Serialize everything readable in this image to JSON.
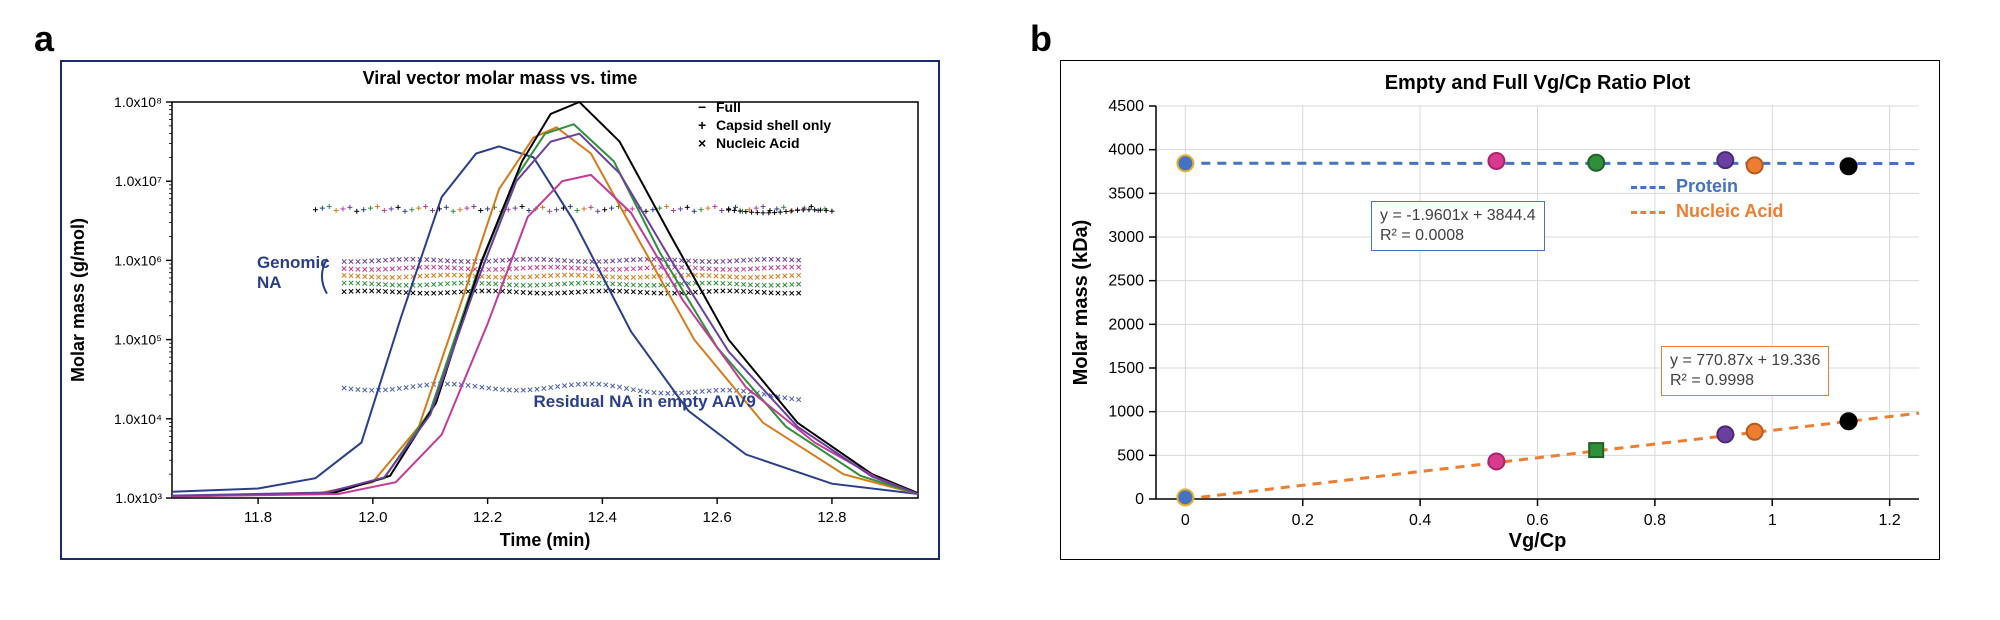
{
  "labels": {
    "a": "a",
    "b": "b"
  },
  "panelA": {
    "title": "Viral vector molar mass vs. time",
    "xlabel": "Time (min)",
    "ylabel": "Molar mass (g/mol)",
    "xlim": [
      11.65,
      12.95
    ],
    "xticks": [
      11.8,
      12.0,
      12.2,
      12.4,
      12.6,
      12.8
    ],
    "ylim_log10": [
      3,
      8
    ],
    "ytick_labels": [
      "1.0x10³",
      "1.0x10⁴",
      "1.0x10⁵",
      "1.0x10⁶",
      "1.0x10⁷",
      "1.0x10⁸"
    ],
    "legend": [
      {
        "marker": "−",
        "label": "Full"
      },
      {
        "marker": "+",
        "label": "Capsid shell only"
      },
      {
        "marker": "×",
        "label": "Nucleic Acid"
      }
    ],
    "annotations": {
      "genomic": "Genomic\nNA",
      "residual": "Residual NA in empty AAV9"
    },
    "colors": {
      "blue_empty": "#2a3e8c",
      "green": "#2f8f3a",
      "orange": "#d87a1a",
      "black": "#000000",
      "magenta": "#c23b98",
      "purple": "#6a3fa0",
      "capsid_band": "#5a5a5a",
      "na_band_low": "#4a5fb0"
    },
    "curves": [
      {
        "color": "#2a3e8c",
        "width": 2,
        "points": [
          [
            11.65,
            3.08
          ],
          [
            11.8,
            3.12
          ],
          [
            11.9,
            3.25
          ],
          [
            11.98,
            3.7
          ],
          [
            12.05,
            5.3
          ],
          [
            12.12,
            6.8
          ],
          [
            12.18,
            7.35
          ],
          [
            12.22,
            7.44
          ],
          [
            12.28,
            7.3
          ],
          [
            12.35,
            6.5
          ],
          [
            12.45,
            5.1
          ],
          [
            12.55,
            4.1
          ],
          [
            12.65,
            3.55
          ],
          [
            12.8,
            3.18
          ],
          [
            12.95,
            3.05
          ]
        ]
      },
      {
        "color": "#d87a1a",
        "width": 2,
        "points": [
          [
            11.65,
            3.02
          ],
          [
            11.9,
            3.05
          ],
          [
            12.0,
            3.2
          ],
          [
            12.08,
            3.9
          ],
          [
            12.16,
            5.6
          ],
          [
            12.22,
            6.9
          ],
          [
            12.28,
            7.55
          ],
          [
            12.32,
            7.68
          ],
          [
            12.38,
            7.35
          ],
          [
            12.46,
            6.3
          ],
          [
            12.56,
            5.0
          ],
          [
            12.68,
            3.95
          ],
          [
            12.82,
            3.3
          ],
          [
            12.95,
            3.05
          ]
        ]
      },
      {
        "color": "#2f8f3a",
        "width": 2,
        "points": [
          [
            11.65,
            3.02
          ],
          [
            11.92,
            3.06
          ],
          [
            12.02,
            3.25
          ],
          [
            12.1,
            4.1
          ],
          [
            12.18,
            5.8
          ],
          [
            12.25,
            7.05
          ],
          [
            12.3,
            7.6
          ],
          [
            12.35,
            7.72
          ],
          [
            12.42,
            7.25
          ],
          [
            12.5,
            6.1
          ],
          [
            12.6,
            4.9
          ],
          [
            12.72,
            3.9
          ],
          [
            12.85,
            3.28
          ],
          [
            12.95,
            3.05
          ]
        ]
      },
      {
        "color": "#000000",
        "width": 2,
        "points": [
          [
            11.65,
            3.02
          ],
          [
            11.93,
            3.06
          ],
          [
            12.03,
            3.28
          ],
          [
            12.11,
            4.2
          ],
          [
            12.19,
            6.0
          ],
          [
            12.26,
            7.25
          ],
          [
            12.31,
            7.85
          ],
          [
            12.36,
            8.0
          ],
          [
            12.43,
            7.5
          ],
          [
            12.52,
            6.3
          ],
          [
            12.62,
            5.0
          ],
          [
            12.74,
            3.95
          ],
          [
            12.87,
            3.3
          ],
          [
            12.95,
            3.06
          ]
        ]
      },
      {
        "color": "#c23b98",
        "width": 2,
        "points": [
          [
            11.65,
            3.02
          ],
          [
            11.94,
            3.05
          ],
          [
            12.04,
            3.2
          ],
          [
            12.12,
            3.8
          ],
          [
            12.2,
            5.2
          ],
          [
            12.27,
            6.55
          ],
          [
            12.33,
            7.0
          ],
          [
            12.38,
            7.08
          ],
          [
            12.45,
            6.6
          ],
          [
            12.54,
            5.5
          ],
          [
            12.65,
            4.4
          ],
          [
            12.77,
            3.7
          ],
          [
            12.88,
            3.25
          ],
          [
            12.95,
            3.05
          ]
        ]
      },
      {
        "color": "#6a3fa0",
        "width": 2,
        "points": [
          [
            11.65,
            3.03
          ],
          [
            11.92,
            3.07
          ],
          [
            12.02,
            3.26
          ],
          [
            12.1,
            4.05
          ],
          [
            12.18,
            5.7
          ],
          [
            12.25,
            7.0
          ],
          [
            12.31,
            7.5
          ],
          [
            12.36,
            7.6
          ],
          [
            12.43,
            7.1
          ],
          [
            12.52,
            6.0
          ],
          [
            12.62,
            4.85
          ],
          [
            12.74,
            3.9
          ],
          [
            12.87,
            3.27
          ],
          [
            12.95,
            3.05
          ]
        ]
      }
    ],
    "capsid_band": {
      "y_log10": 6.65,
      "x_from": 11.9,
      "x_to": 12.8,
      "colors": [
        "#000000",
        "#2a3e8c",
        "#2f8f3a",
        "#d87a1a",
        "#c23b98",
        "#6a3fa0"
      ]
    },
    "genomic_band": {
      "y_from": 5.6,
      "y_to": 6.0,
      "x_from": 11.95,
      "x_to": 12.75,
      "colors": [
        "#000000",
        "#2f8f3a",
        "#d87a1a",
        "#c23b98",
        "#6a3fa0"
      ]
    },
    "residual_band": {
      "y_log10": 4.4,
      "x_from": 11.95,
      "x_to": 12.75,
      "color": "#4a5fb0"
    }
  },
  "panelB": {
    "title": "Empty and Full Vg/Cp Ratio Plot",
    "xlabel": "Vg/Cp",
    "ylabel": "Molar mass (kDa)",
    "xlim": [
      -0.05,
      1.25
    ],
    "xticks": [
      0,
      0.2,
      0.4,
      0.6,
      0.8,
      1,
      1.2
    ],
    "ylim": [
      0,
      4500
    ],
    "yticks": [
      0,
      500,
      1000,
      1500,
      2000,
      2500,
      3000,
      3500,
      4000,
      4500
    ],
    "grid_color": "#d9d9d9",
    "legend": [
      {
        "color": "#4472c4",
        "label": "Protein"
      },
      {
        "color": "#ed7d31",
        "label": "Nucleic Acid"
      }
    ],
    "series_protein": {
      "color": "#4472c4",
      "fit": {
        "slope": -1.9601,
        "intercept": 3844.4,
        "r2": 0.0008
      },
      "eq_text_1": "y = -1.9601x + 3844.4",
      "eq_text_2": "R² = 0.0008",
      "points": [
        {
          "x": 0.0,
          "y": 3844,
          "fill": "#4472c4",
          "stroke": "#e7b030"
        },
        {
          "x": 0.53,
          "y": 3870,
          "fill": "#d63b8e",
          "stroke": "#b02070"
        },
        {
          "x": 0.7,
          "y": 3850,
          "fill": "#2f8f3a",
          "stroke": "#1e6027"
        },
        {
          "x": 0.92,
          "y": 3880,
          "fill": "#6a3fa0",
          "stroke": "#4a2a78"
        },
        {
          "x": 0.97,
          "y": 3820,
          "fill": "#ed7d31",
          "stroke": "#b85a1c"
        },
        {
          "x": 1.13,
          "y": 3810,
          "fill": "#000000",
          "stroke": "#000000"
        }
      ]
    },
    "series_nucleic": {
      "color": "#ed7d31",
      "fit": {
        "slope": 770.87,
        "intercept": 19.336,
        "r2": 0.9998
      },
      "eq_text_1": "y = 770.87x + 19.336",
      "eq_text_2": "R² = 0.9998",
      "points": [
        {
          "x": 0.0,
          "y": 19,
          "fill": "#4472c4",
          "stroke": "#e7b030"
        },
        {
          "x": 0.53,
          "y": 430,
          "fill": "#d63b8e",
          "stroke": "#b02070"
        },
        {
          "x": 0.7,
          "y": 560,
          "fill": "#2f8f3a",
          "stroke": "#1e6027",
          "marker": "square",
          "err": 60
        },
        {
          "x": 0.92,
          "y": 740,
          "fill": "#6a3fa0",
          "stroke": "#4a2a78"
        },
        {
          "x": 0.97,
          "y": 770,
          "fill": "#ed7d31",
          "stroke": "#b85a1c"
        },
        {
          "x": 1.13,
          "y": 890,
          "fill": "#000000",
          "stroke": "#000000"
        }
      ]
    }
  }
}
